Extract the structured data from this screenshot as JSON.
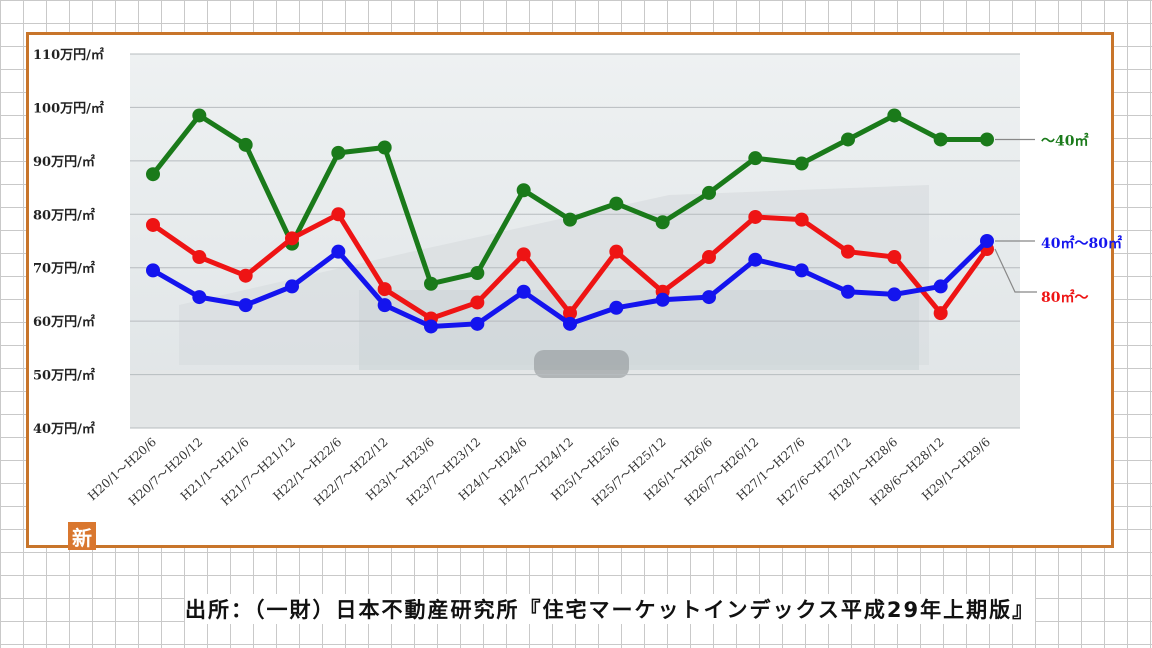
{
  "badge": "新",
  "source": "出所：（一財）日本不動産研究所『住宅マーケットインデックス平成29年上期版』",
  "chart_data": {
    "type": "line",
    "title": "",
    "xlabel": "",
    "ylabel": "",
    "y_unit": "万円/㎡",
    "ylim": [
      40,
      110
    ],
    "yticks": [
      "110万円/㎡",
      "100万円/㎡",
      "90万円/㎡",
      "80万円/㎡",
      "70万円/㎡",
      "60万円/㎡",
      "50万円/㎡",
      "40万円/㎡"
    ],
    "ytick_values": [
      110,
      100,
      90,
      80,
      70,
      60,
      50,
      40
    ],
    "grid": true,
    "categories": [
      "H20/1～H20/6",
      "H20/7～H20/12",
      "H21/1～H21/6",
      "H21/7～H21/12",
      "H22/1～H22/6",
      "H22/7～H22/12",
      "H23/1～H23/6",
      "H23/7～H23/12",
      "H24/1～H24/6",
      "H24/7～H24/12",
      "H25/1～H25/6",
      "H25/7～H25/12",
      "H26/1～H26/6",
      "H26/7～H26/12",
      "H27/1～H27/6",
      "H27/6～H27/12",
      "H28/1～H28/6",
      "H28/6～H28/12",
      "H29/1～H29/6"
    ],
    "series": [
      {
        "name": "～40㎡",
        "color": "#1a7a1a",
        "values": [
          87.5,
          98.5,
          93,
          74.5,
          91.5,
          92.5,
          67,
          69,
          84.5,
          79,
          82,
          78.5,
          84,
          90.5,
          89.5,
          94,
          98.5,
          94,
          94
        ]
      },
      {
        "name": "40㎡～80㎡",
        "color": "#1414ee",
        "values": [
          69.5,
          64.5,
          63,
          66.5,
          73,
          63,
          59,
          59.5,
          65.5,
          59.5,
          62.5,
          64,
          64.5,
          71.5,
          69.5,
          65.5,
          65,
          66.5,
          75
        ]
      },
      {
        "name": "80㎡～",
        "color": "#ee1414",
        "values": [
          78,
          72,
          68.5,
          75.5,
          80,
          66,
          60.5,
          63.5,
          72.5,
          61.5,
          73,
          65.5,
          72,
          79.5,
          79,
          73,
          72,
          61.5,
          73.5
        ]
      }
    ]
  }
}
